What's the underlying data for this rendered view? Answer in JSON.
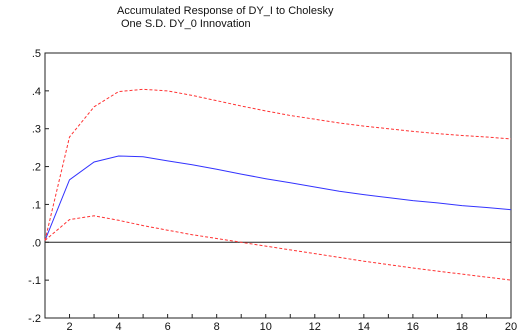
{
  "chart_data": {
    "type": "line",
    "title_lines": [
      "Accumulated Response of DY_I to Cholesky",
      "One S.D. DY_0 Innovation"
    ],
    "xlabel": "",
    "ylabel": "",
    "xlim": [
      1,
      20
    ],
    "ylim": [
      -0.2,
      0.5
    ],
    "x_ticks": [
      2,
      4,
      6,
      8,
      10,
      12,
      14,
      16,
      18,
      20
    ],
    "x_tick_labels": [
      "2",
      "4",
      "6",
      "8",
      "10",
      "12",
      "14",
      "16",
      "18",
      "20"
    ],
    "y_ticks": [
      0.5,
      0.4,
      0.3,
      0.2,
      0.1,
      0.0,
      -0.1,
      -0.2
    ],
    "y_tick_labels": [
      ".5",
      ".4",
      ".3",
      ".2",
      ".1",
      ".0",
      "-.1",
      "-.2"
    ],
    "zero_line": true,
    "grid": false,
    "x": [
      1,
      2,
      3,
      4,
      5,
      6,
      7,
      8,
      9,
      10,
      11,
      12,
      13,
      14,
      15,
      16,
      17,
      18,
      19,
      20
    ],
    "series": [
      {
        "role": "response",
        "color": "#3333ff",
        "dash": "solid",
        "values": [
          0.005,
          0.165,
          0.212,
          0.228,
          0.226,
          0.215,
          0.205,
          0.193,
          0.18,
          0.168,
          0.157,
          0.146,
          0.135,
          0.126,
          0.118,
          0.11,
          0.104,
          0.097,
          0.092,
          0.086
        ]
      },
      {
        "role": "upper band",
        "color": "#ff3333",
        "dash": "dashed",
        "values": [
          0.005,
          0.278,
          0.358,
          0.398,
          0.404,
          0.4,
          0.388,
          0.374,
          0.36,
          0.347,
          0.335,
          0.325,
          0.315,
          0.307,
          0.3,
          0.293,
          0.287,
          0.282,
          0.278,
          0.273
        ]
      },
      {
        "role": "lower band",
        "color": "#ff3333",
        "dash": "dashed",
        "values": [
          0.005,
          0.06,
          0.07,
          0.058,
          0.044,
          0.032,
          0.02,
          0.01,
          0.0,
          -0.01,
          -0.02,
          -0.03,
          -0.04,
          -0.05,
          -0.059,
          -0.068,
          -0.076,
          -0.084,
          -0.092,
          -0.1
        ]
      }
    ]
  }
}
